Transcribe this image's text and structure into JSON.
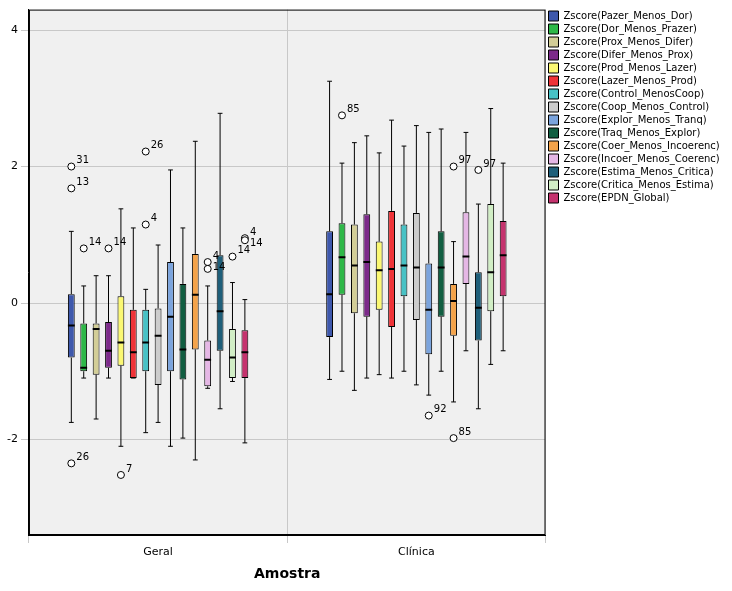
{
  "chart_data": {
    "type": "box",
    "x_label": "Amostra",
    "categories": [
      "Geral",
      "Clínica"
    ],
    "ylim": [
      -3.4,
      4.3
    ],
    "yticks": [
      -2,
      0,
      2,
      4
    ],
    "grid": true,
    "legend": "right",
    "series": [
      {
        "name": "Zscore(Pazer_Menos_Dor)",
        "color": "#3e58ac",
        "values": [
          {
            "min": -1.75,
            "q1": -0.8,
            "median": -0.33,
            "q3": 0.13,
            "max": 1.05,
            "outliers": [
              {
                "value": 2.0,
                "label": "31"
              },
              {
                "value": 1.68,
                "label": "13"
              },
              {
                "value": -2.35,
                "label": "26"
              }
            ]
          },
          {
            "min": -1.12,
            "q1": -0.5,
            "median": 0.13,
            "q3": 1.05,
            "max": 3.25,
            "outliers": []
          }
        ]
      },
      {
        "name": "Zscore(Dor_Menos_Prazer)",
        "color": "#2eb848",
        "values": [
          {
            "min": -1.1,
            "q1": -1.0,
            "median": -0.95,
            "q3": -0.3,
            "max": 0.25,
            "outliers": [
              {
                "value": 0.8,
                "label": "14"
              }
            ]
          },
          {
            "min": -1.0,
            "q1": 0.12,
            "median": 0.67,
            "q3": 1.17,
            "max": 2.05,
            "outliers": [
              {
                "value": 2.75,
                "label": "85"
              }
            ]
          }
        ]
      },
      {
        "name": "Zscore(Prox_Menos_Difer)",
        "color": "#d3ce97",
        "values": [
          {
            "min": -1.7,
            "q1": -1.05,
            "median": -0.38,
            "q3": -0.3,
            "max": 0.4,
            "outliers": []
          },
          {
            "min": -1.28,
            "q1": -0.15,
            "median": 0.55,
            "q3": 1.15,
            "max": 2.35,
            "outliers": []
          }
        ]
      },
      {
        "name": "Zscore(Difer_Menos_Prox)",
        "color": "#7c2a8a",
        "values": [
          {
            "min": -1.1,
            "q1": -0.95,
            "median": -0.7,
            "q3": -0.28,
            "max": 0.4,
            "outliers": [
              {
                "value": 0.8,
                "label": "14"
              }
            ]
          },
          {
            "min": -1.1,
            "q1": -0.2,
            "median": 0.6,
            "q3": 1.3,
            "max": 2.45,
            "outliers": []
          }
        ]
      },
      {
        "name": "Zscore(Prod_Menos_Lazer)",
        "color": "#fbf873",
        "values": [
          {
            "min": -2.1,
            "q1": -0.92,
            "median": -0.58,
            "q3": 0.1,
            "max": 1.38,
            "outliers": [
              {
                "value": -2.52,
                "label": "7"
              }
            ]
          },
          {
            "min": -1.05,
            "q1": -0.1,
            "median": 0.48,
            "q3": 0.9,
            "max": 2.2,
            "outliers": []
          }
        ]
      },
      {
        "name": "Zscore(Lazer_Menos_Prod)",
        "color": "#ef3338",
        "values": [
          {
            "min": -1.1,
            "q1": -1.1,
            "median": -0.72,
            "q3": -0.1,
            "max": 1.1,
            "outliers": []
          },
          {
            "min": -1.1,
            "q1": -0.35,
            "median": 0.5,
            "q3": 1.35,
            "max": 2.68,
            "outliers": []
          }
        ]
      },
      {
        "name": "Zscore(Control_MenosCoop)",
        "color": "#48c2c5",
        "values": [
          {
            "min": -1.9,
            "q1": -1.0,
            "median": -0.58,
            "q3": -0.1,
            "max": 0.2,
            "outliers": [
              {
                "value": 2.22,
                "label": "26"
              },
              {
                "value": 1.15,
                "label": "4"
              }
            ]
          },
          {
            "min": -1.0,
            "q1": 0.1,
            "median": 0.55,
            "q3": 1.15,
            "max": 2.3,
            "outliers": []
          }
        ]
      },
      {
        "name": "Zscore(Coop_Menos_Control)",
        "color": "#cccccc",
        "values": [
          {
            "min": -1.75,
            "q1": -1.2,
            "median": -0.48,
            "q3": -0.08,
            "max": 0.85,
            "outliers": []
          },
          {
            "min": -1.2,
            "q1": -0.25,
            "median": 0.52,
            "q3": 1.32,
            "max": 2.6,
            "outliers": []
          }
        ]
      },
      {
        "name": "Zscore(Explor_Menos_Tranq)",
        "color": "#7ba4dd",
        "values": [
          {
            "min": -2.1,
            "q1": -1.0,
            "median": -0.2,
            "q3": 0.6,
            "max": 1.95,
            "outliers": []
          },
          {
            "min": -1.35,
            "q1": -0.75,
            "median": -0.1,
            "q3": 0.58,
            "max": 2.5,
            "outliers": [
              {
                "value": -1.65,
                "label": "92"
              }
            ]
          }
        ]
      },
      {
        "name": "Zscore(Traq_Menos_Explor)",
        "color": "#115e41",
        "values": [
          {
            "min": -1.98,
            "q1": -1.12,
            "median": -0.68,
            "q3": 0.28,
            "max": 1.1,
            "outliers": []
          },
          {
            "min": -1.0,
            "q1": -0.2,
            "median": 0.52,
            "q3": 1.05,
            "max": 2.55,
            "outliers": []
          }
        ]
      },
      {
        "name": "Zscore(Coer_Menos_Incoerenc)",
        "color": "#f4a34a",
        "values": [
          {
            "min": -2.3,
            "q1": -0.68,
            "median": 0.12,
            "q3": 0.72,
            "max": 2.37,
            "outliers": []
          },
          {
            "min": -1.45,
            "q1": -0.48,
            "median": 0.03,
            "q3": 0.28,
            "max": 0.9,
            "outliers": [
              {
                "value": 2.0,
                "label": "97"
              },
              {
                "value": -1.98,
                "label": "85"
              }
            ]
          }
        ]
      },
      {
        "name": "Zscore(Incoer_Menos_Coerenc)",
        "color": "#e5b7e5",
        "values": [
          {
            "min": -1.25,
            "q1": -1.22,
            "median": -0.83,
            "q3": -0.55,
            "max": 0.25,
            "outliers": [
              {
                "value": 0.6,
                "label": "4"
              },
              {
                "value": 0.5,
                "label": "14"
              }
            ]
          },
          {
            "min": -0.7,
            "q1": 0.28,
            "median": 0.68,
            "q3": 1.33,
            "max": 2.5,
            "outliers": []
          }
        ]
      },
      {
        "name": "Zscore(Estima_Menos_Critica)",
        "color": "#1f5f7a",
        "values": [
          {
            "min": -1.55,
            "q1": -0.7,
            "median": -0.12,
            "q3": 0.7,
            "max": 2.78,
            "outliers": []
          },
          {
            "min": -1.55,
            "q1": -0.55,
            "median": -0.07,
            "q3": 0.45,
            "max": 1.45,
            "outliers": [
              {
                "value": 1.95,
                "label": "97"
              }
            ]
          }
        ]
      },
      {
        "name": "Zscore(Critica_Menos_Estima)",
        "color": "#d1eec5",
        "values": [
          {
            "min": -1.15,
            "q1": -1.1,
            "median": -0.8,
            "q3": -0.38,
            "max": 0.3,
            "outliers": [
              {
                "value": 0.68,
                "label": "14"
              }
            ]
          },
          {
            "min": -0.9,
            "q1": -0.12,
            "median": 0.45,
            "q3": 1.45,
            "max": 2.85,
            "outliers": []
          }
        ]
      },
      {
        "name": "Zscore(EPDN_Global)",
        "color": "#c5336e",
        "values": [
          {
            "min": -2.05,
            "q1": -1.1,
            "median": -0.72,
            "q3": -0.4,
            "max": 0.05,
            "outliers": [
              {
                "value": 0.95,
                "label": "4"
              },
              {
                "value": 0.92,
                "label": "14"
              }
            ]
          },
          {
            "min": -0.7,
            "q1": 0.1,
            "median": 0.7,
            "q3": 1.2,
            "max": 2.05,
            "outliers": []
          }
        ]
      }
    ]
  }
}
